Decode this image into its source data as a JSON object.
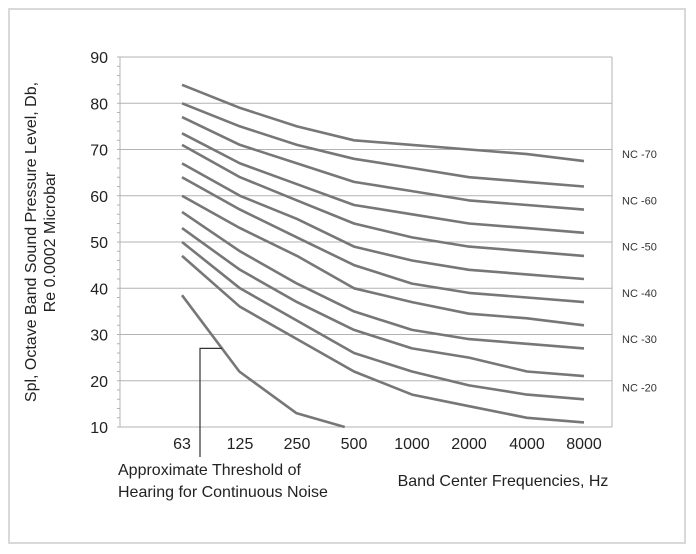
{
  "chart_data": {
    "type": "line",
    "title": "",
    "xlabel": "Band Center Frequencies, Hz",
    "ylabel_lines": [
      "Spl, Octave Band Sound Pressure Level, Db,",
      "Re 0.0002 Microbar"
    ],
    "categories": [
      "63",
      "125",
      "250",
      "500",
      "1000",
      "2000",
      "4000",
      "8000"
    ],
    "y_ticks": [
      "10",
      "20",
      "30",
      "40",
      "50",
      "60",
      "70",
      "80",
      "90"
    ],
    "ylim": [
      10,
      90
    ],
    "grid": "horizontal",
    "colors": {
      "line": "#777777",
      "grid": "#b3b3b3",
      "text": "#222222"
    },
    "series": [
      {
        "values": [
          84,
          79,
          75,
          72,
          71,
          70,
          69,
          67.5
        ]
      },
      {
        "values": [
          80,
          75,
          71,
          68,
          66,
          64,
          63,
          62
        ]
      },
      {
        "values": [
          77,
          71,
          67,
          63,
          61,
          59,
          58,
          57
        ]
      },
      {
        "values": [
          73.5,
          67,
          62.5,
          58,
          56,
          54,
          53,
          52
        ]
      },
      {
        "values": [
          71,
          64,
          59,
          54,
          51,
          49,
          48,
          47
        ]
      },
      {
        "values": [
          67,
          60,
          55,
          49,
          46,
          44,
          43,
          42
        ]
      },
      {
        "values": [
          64,
          57,
          51,
          45,
          41,
          39,
          38,
          37
        ]
      },
      {
        "values": [
          60,
          53,
          47,
          40,
          37,
          34.5,
          33.5,
          32
        ]
      },
      {
        "values": [
          56.5,
          48,
          41,
          35,
          31,
          29,
          28,
          27
        ]
      },
      {
        "values": [
          53,
          44,
          37,
          31,
          27,
          25,
          22,
          21
        ]
      },
      {
        "values": [
          50,
          40,
          33,
          26,
          22,
          19,
          17,
          16
        ]
      },
      {
        "values": [
          47,
          36,
          29,
          22,
          17,
          14.5,
          12,
          11
        ]
      }
    ],
    "nc_labels": [
      {
        "text": "NC -70",
        "y": 69
      },
      {
        "text": "NC -60",
        "y": 59
      },
      {
        "text": "NC -50",
        "y": 49
      },
      {
        "text": "NC -40",
        "y": 39
      },
      {
        "text": "NC -30",
        "y": 29
      },
      {
        "text": "NC -20",
        "y": 18.5
      }
    ],
    "threshold": {
      "label_lines": [
        "Approximate Threshold of",
        "Hearing for Continuous Noise"
      ],
      "x": [
        63,
        125,
        250,
        450
      ],
      "y": [
        38.5,
        22,
        13,
        10
      ],
      "pointer_y": 27
    }
  }
}
